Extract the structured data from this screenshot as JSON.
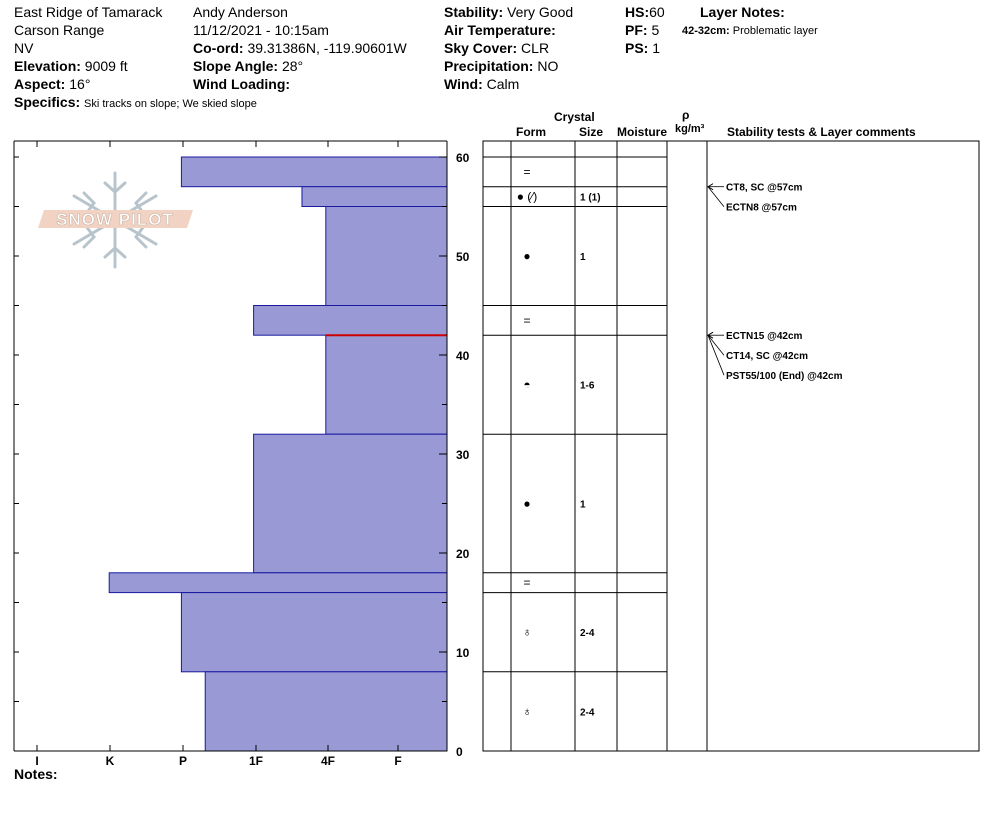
{
  "header": {
    "location": "East Ridge of Tamarack",
    "range": "Carson Range",
    "state": "NV",
    "elevation_label": "Elevation:",
    "elevation": "9009 ft",
    "aspect_label": "Aspect:",
    "aspect": "16°",
    "specifics_label": "Specifics:",
    "specifics": "Ski tracks on slope; We skied slope",
    "observer": "Andy Anderson",
    "datetime": "11/12/2021 - 10:15am",
    "coord_label": "Co-ord:",
    "coord": "39.31386N, -119.90601W",
    "slope_label": "Slope Angle:",
    "slope": "28°",
    "wind_loading_label": "Wind Loading:",
    "wind_loading": "",
    "stability_label": "Stability:",
    "stability": "Very Good",
    "air_temp_label": "Air Temperature:",
    "air_temp": "",
    "sky_label": "Sky Cover:",
    "sky": "CLR",
    "precip_label": "Precipitation:",
    "precip": "NO",
    "wind_label": "Wind:",
    "wind": "Calm",
    "hs_label": "HS:",
    "hs": "60",
    "pf_label": "PF:",
    "pf": "5",
    "ps_label": "PS:",
    "ps": "1",
    "layer_notes_label": "Layer Notes:",
    "layer_note_range": "42-32cm:",
    "layer_note_text": "Problematic layer"
  },
  "logo_text": "SNOW PILOT",
  "notes_label": "Notes:",
  "columns": {
    "crystal": "Crystal",
    "form": "Form",
    "size": "Size",
    "moisture": "Moisture",
    "rho": "ρ",
    "density_unit": "kg/m³",
    "stability_tests": "Stability tests & Layer comments"
  },
  "colors": {
    "hardness_fill": "#9999d6",
    "hardness_stroke": "#1a1aa0",
    "critical_layer": "#cc0000"
  },
  "chart_data": {
    "type": "bar",
    "orientation": "horizontal",
    "y_axis_unit": "cm",
    "ylim": [
      0,
      60
    ],
    "yticks": [
      0,
      10,
      20,
      30,
      40,
      50,
      60
    ],
    "x_categories": [
      "I",
      "K",
      "P",
      "1F",
      "4F",
      "F"
    ],
    "hardness_layers": [
      {
        "top": 60,
        "bottom": 57,
        "hardness": "P"
      },
      {
        "top": 57,
        "bottom": 55,
        "hardness": "4F+"
      },
      {
        "top": 55,
        "bottom": 45,
        "hardness": "4F"
      },
      {
        "top": 45,
        "bottom": 42,
        "hardness": "1F"
      },
      {
        "top": 42,
        "bottom": 32,
        "hardness": "4F"
      },
      {
        "top": 32,
        "bottom": 18,
        "hardness": "1F"
      },
      {
        "top": 18,
        "bottom": 16,
        "hardness": "K"
      },
      {
        "top": 16,
        "bottom": 8,
        "hardness": "P"
      },
      {
        "top": 8,
        "bottom": 0,
        "hardness": "P-"
      }
    ],
    "hardness_index": {
      "F": 0,
      "4F": 1,
      "4F+": 1.33,
      "1F": 2,
      "P-": 2.67,
      "P": 3,
      "K": 4,
      "I": 5
    },
    "critical_depth": 42,
    "crystal_layers": [
      {
        "top": 60,
        "bottom": 57,
        "form": "=",
        "size": ""
      },
      {
        "top": 57,
        "bottom": 55,
        "form": "● (⁄)",
        "size": "1 (1)"
      },
      {
        "top": 55,
        "bottom": 45,
        "form": "●",
        "size": "1"
      },
      {
        "top": 45,
        "bottom": 42,
        "form": "=",
        "size": ""
      },
      {
        "top": 42,
        "bottom": 32,
        "form": "◓",
        "size": "1-6"
      },
      {
        "top": 32,
        "bottom": 18,
        "form": "●",
        "size": "1"
      },
      {
        "top": 18,
        "bottom": 16,
        "form": "=",
        "size": ""
      },
      {
        "top": 16,
        "bottom": 8,
        "form": "♁",
        "size": "2-4"
      },
      {
        "top": 8,
        "bottom": 0,
        "form": "♁",
        "size": "2-4"
      }
    ],
    "stability_tests": [
      {
        "depth": 57,
        "text": "CT8, SC @57cm"
      },
      {
        "depth": 57,
        "text": "ECTN8 @57cm"
      },
      {
        "depth": 42,
        "text": "ECTN15 @42cm"
      },
      {
        "depth": 42,
        "text": "CT14, SC @42cm"
      },
      {
        "depth": 42,
        "text": "PST55/100 (End) @42cm"
      }
    ]
  }
}
